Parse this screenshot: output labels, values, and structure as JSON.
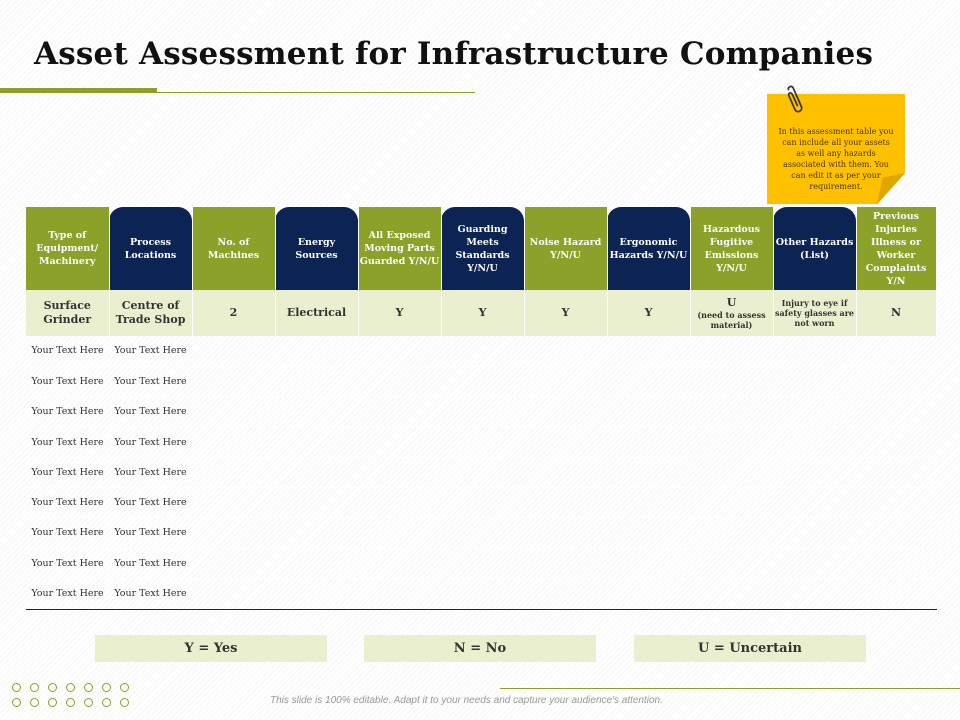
{
  "title": "Asset Assessment for Infrastructure Companies",
  "note": "In this assessment table you can include all your assets as well any hazards associated with them. You can edit it as per your requirement.",
  "header": [
    "Type of Equipment/ Machinery",
    "Process Locations",
    "No. of Machines",
    "Energy Sources",
    "All Exposed Moving Parts Guarded Y/N/U",
    "Guarding Meets Standards Y/N/U",
    "Noise Hazard Y/N/U",
    "Ergonomic Hazards Y/N/U",
    "Hazardous Fugitive Emissions Y/N/U",
    "Other Hazards (List)",
    "Previous Injuries Illness or Worker Complaints Y/N"
  ],
  "first_row": {
    "type": "Surface Grinder",
    "location": "Centre of Trade Shop",
    "machines": "2",
    "energy": "Electrical",
    "guarded": "Y",
    "standards": "Y",
    "noise": "Y",
    "ergonomic": "Y",
    "emissions": "U",
    "emissions_note": "(need to assess material)",
    "other": "Injury to eye if safety glasses are not worn",
    "previous": "N"
  },
  "placeholder_rows": [
    [
      "Your Text Here",
      "Your Text Here"
    ],
    [
      "Your Text Here",
      "Your Text Here"
    ],
    [
      "Your Text Here",
      "Your Text Here"
    ],
    [
      "Your Text Here",
      "Your Text Here"
    ],
    [
      "Your Text Here",
      "Your Text Here"
    ],
    [
      "Your Text Here",
      "Your Text Here"
    ],
    [
      "Your Text Here",
      "Your Text Here"
    ],
    [
      "Your Text Here",
      "Your Text Here"
    ],
    [
      "Your Text Here",
      "Your Text Here"
    ]
  ],
  "legend": {
    "yes": "Y = Yes",
    "no": "N = No",
    "uncertain": "U = Uncertain"
  },
  "footer": "This slide is 100% editable. Adapt it to your needs and capture your audience's attention.",
  "colors": {
    "accent_green": "#8ca12a",
    "navy": "#0c2454",
    "light_green": "#eaf0cf",
    "note_yellow": "#ffc000"
  },
  "icons": {
    "note_clip": "paperclip-icon",
    "decoration": "dot-grid"
  }
}
